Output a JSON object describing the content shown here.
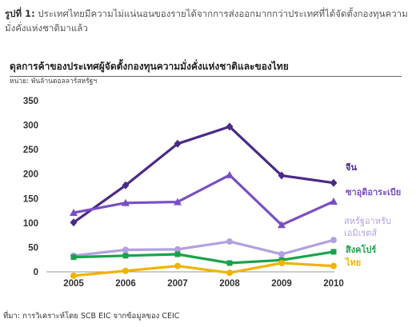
{
  "figure": {
    "number": "รูปที่ 1:",
    "caption": "ประเทศไทยมีความไม่แน่นอนของรายได้จากการส่งออกมากกว่าประเทศที่ได้จัดตั้งกองทุนความมั่งคั่งแห่งชาติมาแล้ว"
  },
  "source": "ที่มา: การวิเคราะห์โดย SCB EIC จากข้อมูลของ CEIC",
  "chart_data": {
    "type": "line",
    "title": "ดุลการค้าของประเทศผู้จัดตั้งกองทุนความมั่งคั่งแห่งชาติและของไทย",
    "ylabel": "หน่วย: พันล้านดอลลาร์สหรัฐฯ",
    "xlabel": "",
    "x": [
      "2005",
      "2006",
      "2007",
      "2008",
      "2009",
      "2010"
    ],
    "ylim": [
      -50,
      350
    ],
    "yticks": [
      -50,
      0,
      50,
      100,
      150,
      200,
      250,
      300,
      350
    ],
    "ytick_labels": [
      "",
      "0",
      "50",
      "100",
      "150",
      "200",
      "250",
      "300",
      "350"
    ],
    "grid": false,
    "series": [
      {
        "name": "จีน",
        "values": [
          101,
          177,
          262,
          297,
          197,
          182
        ],
        "color": "#4b2a87",
        "marker": "diamond"
      },
      {
        "name": "ซาอุดิอาระเบีย",
        "values": [
          121,
          141,
          143,
          198,
          96,
          144
        ],
        "color": "#7a4fc4",
        "marker": "triangle"
      },
      {
        "name": "สหรัฐอาหรับ เอมิเรตส์",
        "values": [
          33,
          45,
          46,
          62,
          36,
          65
        ],
        "color": "#b3a0e0",
        "marker": "circle"
      },
      {
        "name": "สิงคโปร์",
        "values": [
          30,
          33,
          36,
          18,
          24,
          41
        ],
        "color": "#1aa24a",
        "marker": "square"
      },
      {
        "name": "ไทย",
        "values": [
          -8,
          2,
          12,
          -2,
          18,
          12
        ],
        "color": "#f0b400",
        "marker": "circle"
      }
    ]
  }
}
